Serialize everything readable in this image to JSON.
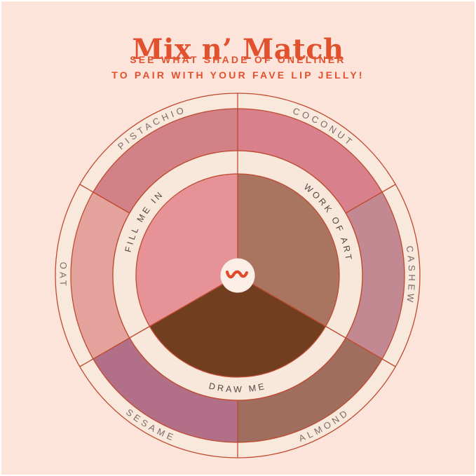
{
  "page": {
    "background_color": "#fce4db",
    "accent_color": "#e2512d"
  },
  "header": {
    "title": "Mix n’ Match",
    "subtitle_line1": "SEE WHAT SHADE OF ONELINER",
    "subtitle_line2": "TO PAIR WITH YOUR FAVE LIP JELLY!"
  },
  "wheel": {
    "center_icon": "squiggle-icon",
    "stroke_color": "#c04a30",
    "ring_cream_color": "#f9e8dc",
    "inner_band_color": "#f8e8dc",
    "center_circle_color": "#faeee6",
    "outer_label_color": "#7c6a66",
    "inner_label_color": "#54443d",
    "squiggle_color": "#e0492a",
    "outer_segments": [
      {
        "label": "COCONUT",
        "color": "#d8808b",
        "start_deg": 0,
        "end_deg": 60,
        "text_dir": "cw"
      },
      {
        "label": "CASHEW",
        "color": "#c28992",
        "start_deg": 60,
        "end_deg": 120,
        "text_dir": "cw"
      },
      {
        "label": "ALMOND",
        "color": "#9f6e5e",
        "start_deg": 120,
        "end_deg": 180,
        "text_dir": "ccw"
      },
      {
        "label": "SESAME",
        "color": "#b27088",
        "start_deg": 180,
        "end_deg": 240,
        "text_dir": "ccw"
      },
      {
        "label": "OAT",
        "color": "#e4a29c",
        "start_deg": 240,
        "end_deg": 300,
        "text_dir": "ccw"
      },
      {
        "label": "PISTACHIO",
        "color": "#d28186",
        "start_deg": 300,
        "end_deg": 360,
        "text_dir": "cw"
      }
    ],
    "inner_segments": [
      {
        "label": "WORK OF ART",
        "color": "#aa7560",
        "start_deg": 0,
        "end_deg": 120,
        "text_dir": "cw"
      },
      {
        "label": "DRAW ME",
        "color": "#713e20",
        "start_deg": 120,
        "end_deg": 240,
        "text_dir": "ccw"
      },
      {
        "label": "FILL ME IN",
        "color": "#e69297",
        "start_deg": 240,
        "end_deg": 360,
        "text_dir": "cw"
      }
    ]
  }
}
